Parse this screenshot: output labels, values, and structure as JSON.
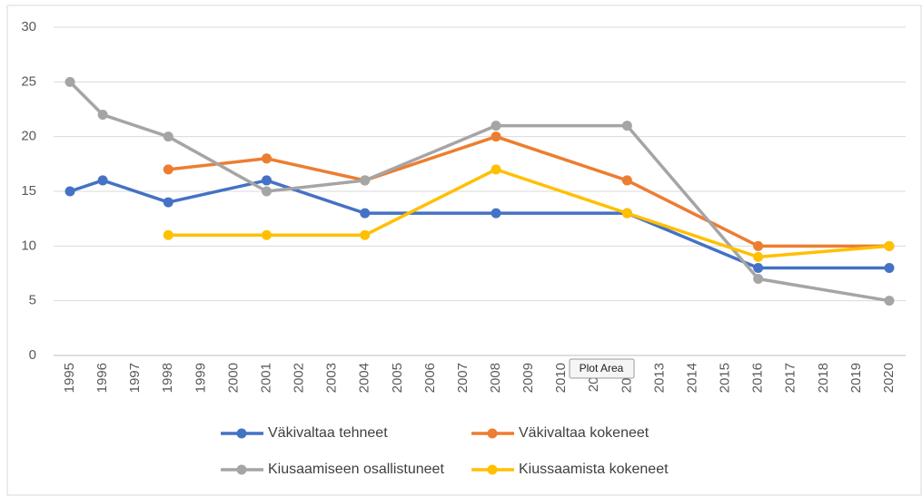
{
  "chart_data": {
    "type": "line",
    "xlim": [
      1994.5,
      2020.5
    ],
    "xticks": [
      1995,
      1996,
      1997,
      1998,
      1999,
      2000,
      2001,
      2002,
      2003,
      2004,
      2005,
      2006,
      2007,
      2008,
      2009,
      2010,
      2011,
      2012,
      2013,
      2014,
      2015,
      2016,
      2017,
      2018,
      2019,
      2020
    ],
    "ylim": [
      0,
      30
    ],
    "yticks": [
      0,
      5,
      10,
      15,
      20,
      25,
      30
    ],
    "grid": true,
    "series": [
      {
        "name": "Väkivaltaa tehneet",
        "color": "#4472c4",
        "x": [
          1995,
          1996,
          1998,
          2001,
          2004,
          2008,
          2012,
          2016,
          2020
        ],
        "values": [
          15,
          16,
          14,
          16,
          13,
          13,
          13,
          8,
          8
        ]
      },
      {
        "name": "Väkivaltaa kokeneet",
        "color": "#ed7d31",
        "x": [
          1998,
          2001,
          2004,
          2008,
          2012,
          2016,
          2020
        ],
        "values": [
          17,
          18,
          16,
          20,
          16,
          10,
          10
        ]
      },
      {
        "name": "Kiusaamiseen osallistuneet",
        "color": "#a5a5a5",
        "x": [
          1995,
          1996,
          1998,
          2001,
          2004,
          2008,
          2012,
          2016,
          2020
        ],
        "values": [
          25,
          22,
          20,
          15,
          16,
          21,
          21,
          7,
          5
        ]
      },
      {
        "name": "Kiussaamista kokeneet",
        "color": "#ffc000",
        "x": [
          1998,
          2001,
          2004,
          2008,
          2012,
          2016,
          2020
        ],
        "values": [
          11,
          11,
          11,
          17,
          13,
          9,
          10
        ]
      }
    ],
    "tooltip": "Plot Area"
  }
}
